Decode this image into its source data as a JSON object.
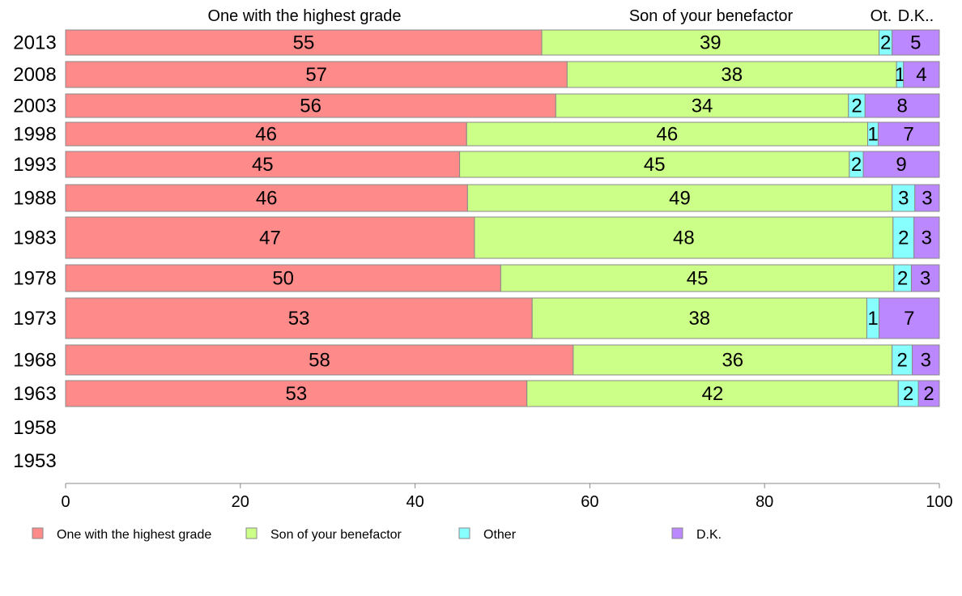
{
  "chart_data": {
    "type": "bar",
    "orientation": "horizontal",
    "stacked": true,
    "title": "",
    "xlabel": "",
    "ylabel": "",
    "xlim": [
      0,
      100
    ],
    "x_ticks": [
      0,
      20,
      40,
      60,
      80,
      100
    ],
    "column_headers": [
      "One with the highest grade",
      "Son of your benefactor",
      "Ot.",
      "D.K.."
    ],
    "categories": [
      "2013",
      "2008",
      "2003",
      "1998",
      "1993",
      "1988",
      "1983",
      "1978",
      "1973",
      "1968",
      "1963",
      "1958",
      "1953"
    ],
    "series": [
      {
        "name": "One with the highest grade",
        "color": "#ff8a8a",
        "values": [
          55,
          57,
          56,
          46,
          45,
          46,
          47,
          50,
          53,
          58,
          53,
          null,
          null
        ],
        "shares": [
          54.5,
          57.4,
          56.1,
          45.9,
          45.1,
          46.0,
          46.8,
          49.8,
          53.4,
          58.1,
          52.8,
          null,
          null
        ]
      },
      {
        "name": "Son of your benefactor",
        "color": "#ccff88",
        "values": [
          39,
          38,
          34,
          46,
          45,
          49,
          48,
          45,
          38,
          36,
          42,
          null,
          null
        ],
        "shares": [
          38.6,
          37.7,
          33.5,
          45.9,
          44.6,
          48.6,
          47.9,
          45.0,
          38.3,
          36.5,
          42.5,
          null,
          null
        ]
      },
      {
        "name": "Other",
        "color": "#88ffff",
        "values": [
          2,
          1,
          2,
          1,
          2,
          3,
          2,
          2,
          1,
          2,
          2,
          null,
          null
        ],
        "shares": [
          1.5,
          0.8,
          1.9,
          1.2,
          1.6,
          2.6,
          2.4,
          2.0,
          1.4,
          2.3,
          2.3,
          null,
          null
        ]
      },
      {
        "name": "D.K.",
        "color": "#bb88ff",
        "values": [
          5,
          4,
          8,
          7,
          9,
          3,
          3,
          3,
          7,
          3,
          2,
          null,
          null
        ],
        "shares": [
          5.4,
          4.1,
          8.5,
          7.0,
          8.7,
          2.8,
          2.9,
          3.2,
          6.9,
          3.1,
          2.4,
          null,
          null
        ]
      }
    ],
    "legend": {
      "position": "bottom",
      "labels": [
        "One with the highest grade",
        "Son of your benefactor",
        "Other",
        "D.K."
      ]
    },
    "grid": false
  }
}
